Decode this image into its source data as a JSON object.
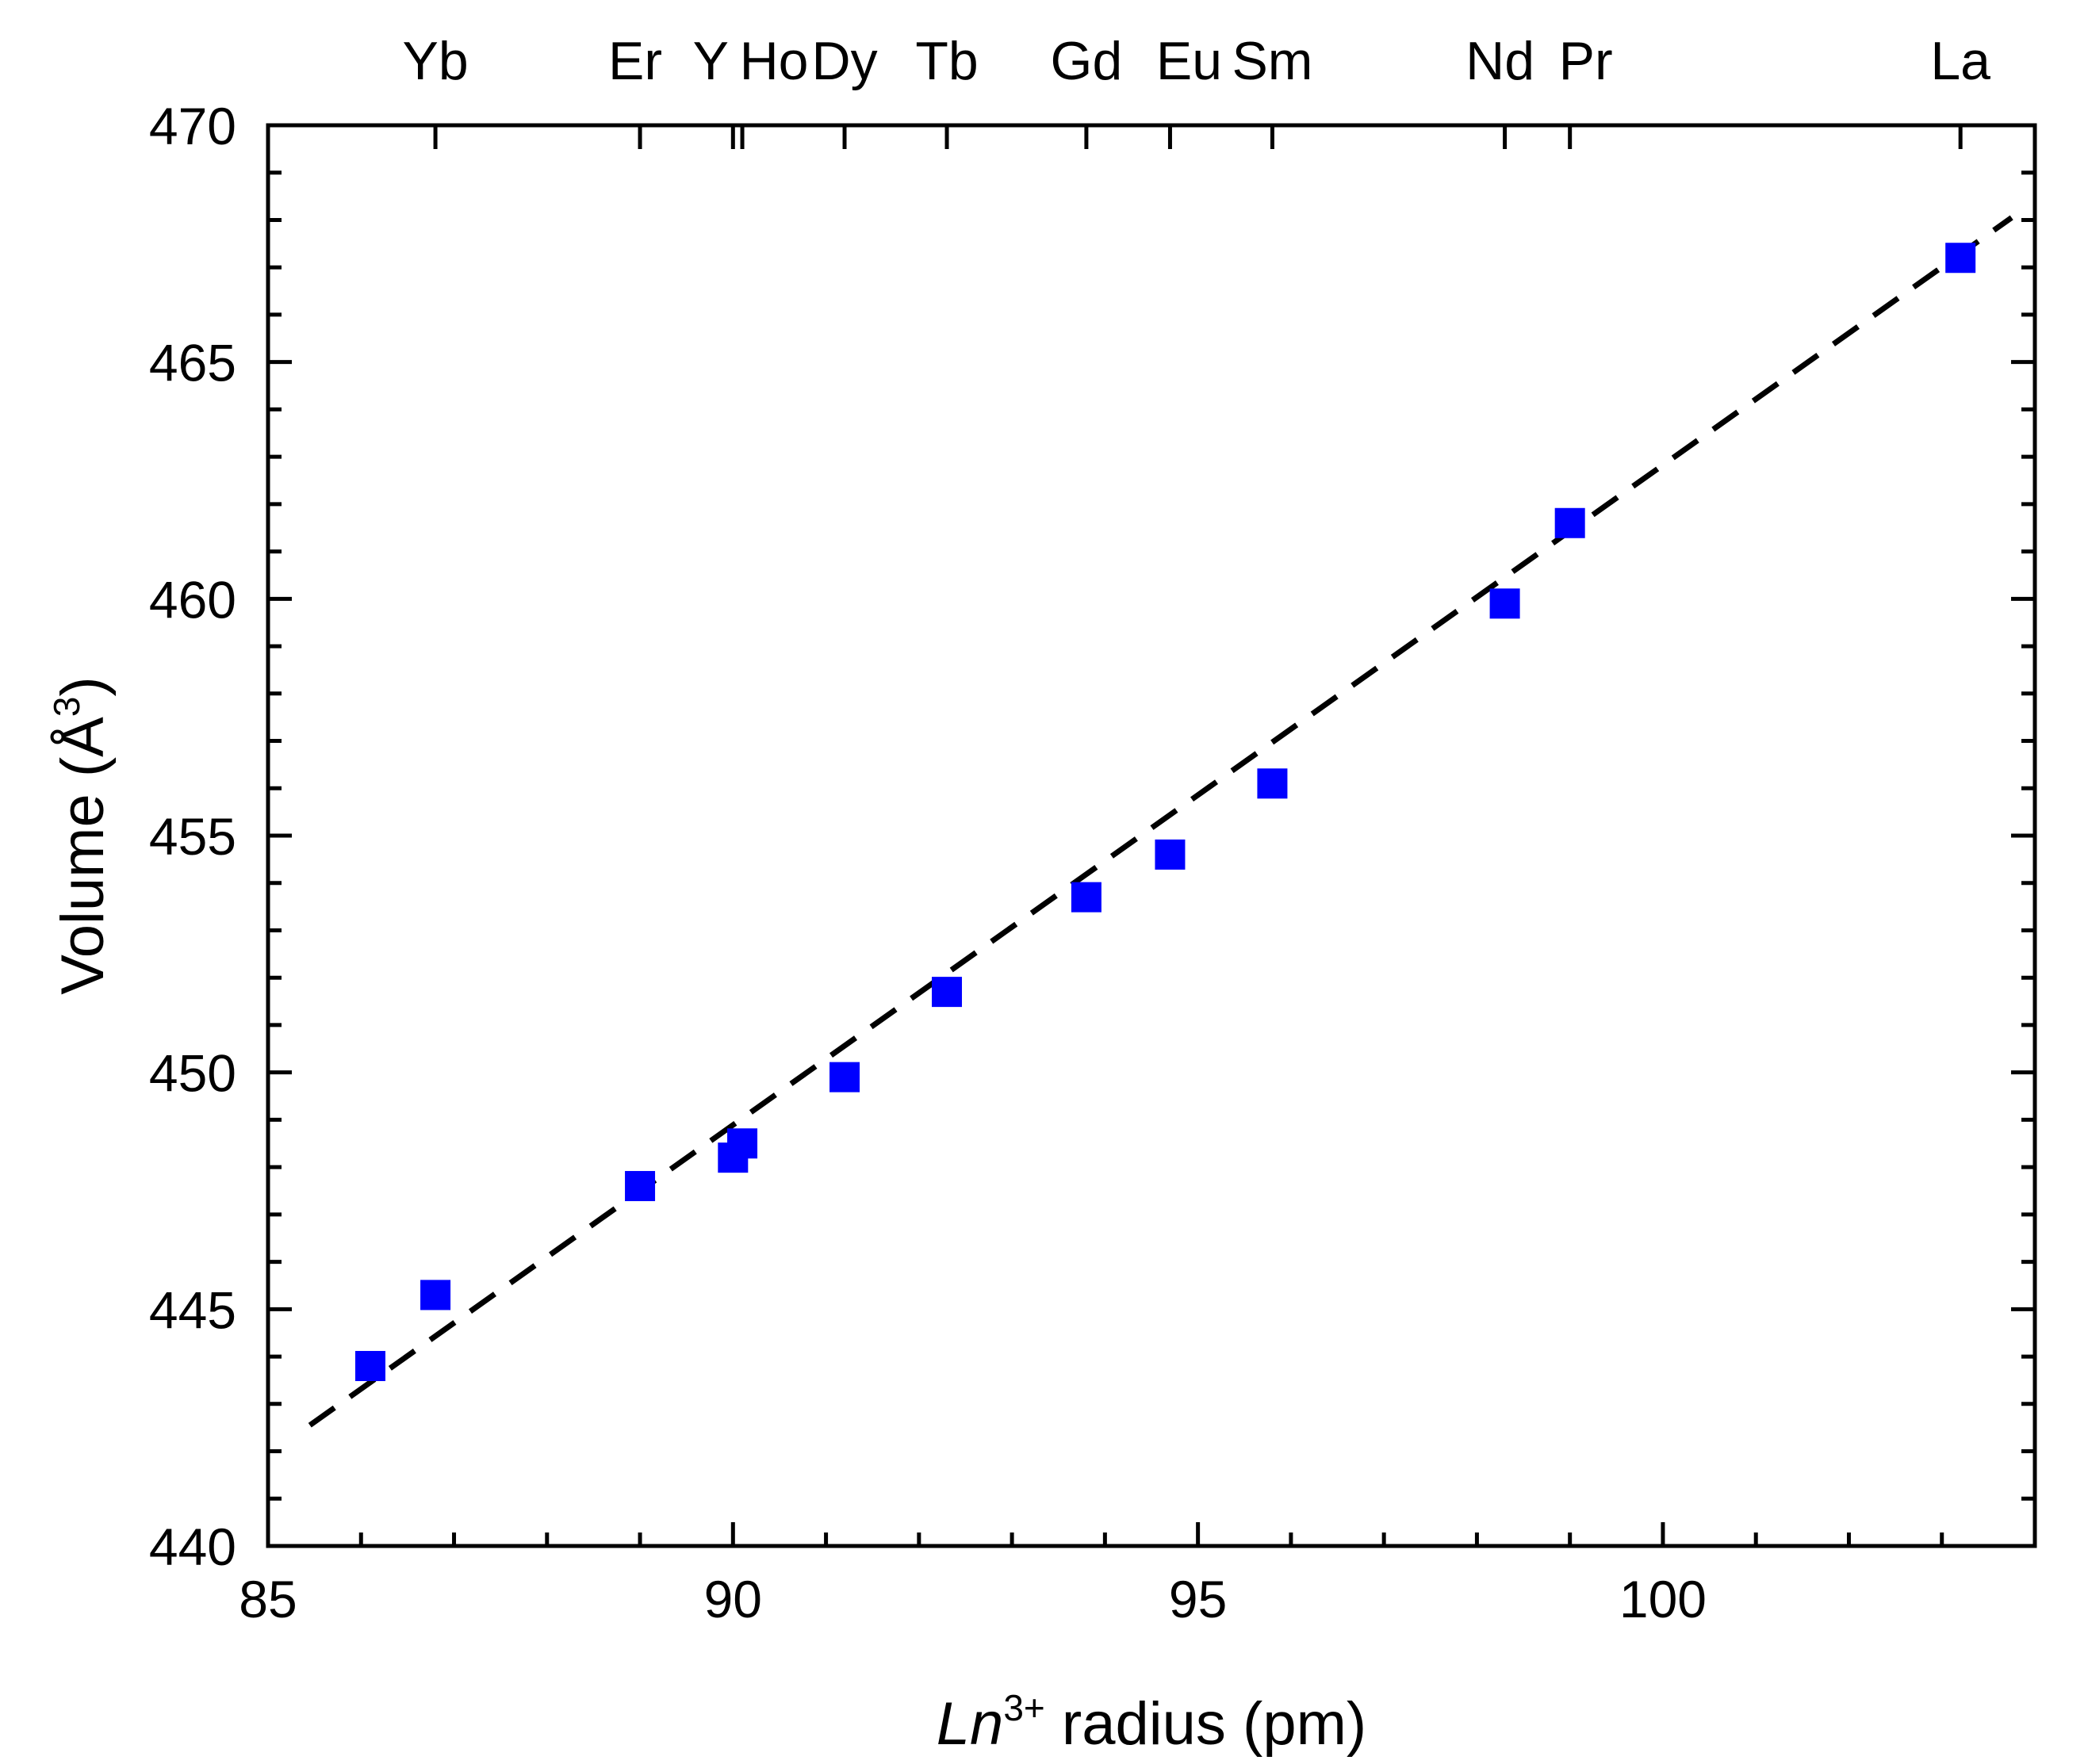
{
  "chart_data": {
    "type": "scatter",
    "xlabel": {
      "prefix": "Ln",
      "superscript": "3+",
      "suffix": " radius (pm)"
    },
    "ylabel": {
      "prefix": "Volume (Å",
      "superscript": "3",
      "suffix": ")"
    },
    "xlim": [
      85,
      104
    ],
    "ylim": [
      440,
      470
    ],
    "xticks": [
      85,
      90,
      95,
      100
    ],
    "yticks": [
      440,
      445,
      450,
      455,
      460,
      465,
      470
    ],
    "grid": false,
    "series": [
      {
        "name": "data",
        "marker": "square",
        "color": "#0000ff",
        "points": [
          {
            "x": 86.1,
            "y": 443.8
          },
          {
            "x": 86.8,
            "y": 445.3
          },
          {
            "x": 89.0,
            "y": 447.6
          },
          {
            "x": 90.0,
            "y": 448.2
          },
          {
            "x": 90.1,
            "y": 448.5
          },
          {
            "x": 91.2,
            "y": 449.9
          },
          {
            "x": 92.3,
            "y": 451.7
          },
          {
            "x": 93.8,
            "y": 453.7
          },
          {
            "x": 94.7,
            "y": 454.6
          },
          {
            "x": 95.8,
            "y": 456.1
          },
          {
            "x": 98.3,
            "y": 459.9
          },
          {
            "x": 99.0,
            "y": 461.6
          },
          {
            "x": 103.2,
            "y": 467.2
          }
        ]
      }
    ],
    "fit_line": {
      "style": "dashed",
      "color": "#000000",
      "x": [
        85.45,
        103.75
      ],
      "y": [
        442.55,
        468.05
      ]
    },
    "top_axis": {
      "labels": [
        {
          "text": "Yb",
          "x": 86.8
        },
        {
          "text": "Er",
          "x": 89.0
        },
        {
          "text": "Y",
          "x": 90.0
        },
        {
          "text": "Ho",
          "x": 90.1
        },
        {
          "text": "Dy",
          "x": 91.2
        },
        {
          "text": "Tb",
          "x": 92.3
        },
        {
          "text": "Gd",
          "x": 93.8
        },
        {
          "text": "Eu",
          "x": 94.7
        },
        {
          "text": "Sm",
          "x": 95.8
        },
        {
          "text": "Nd",
          "x": 98.3
        },
        {
          "text": "Pr",
          "x": 99.0
        },
        {
          "text": "La",
          "x": 103.2
        }
      ]
    }
  }
}
